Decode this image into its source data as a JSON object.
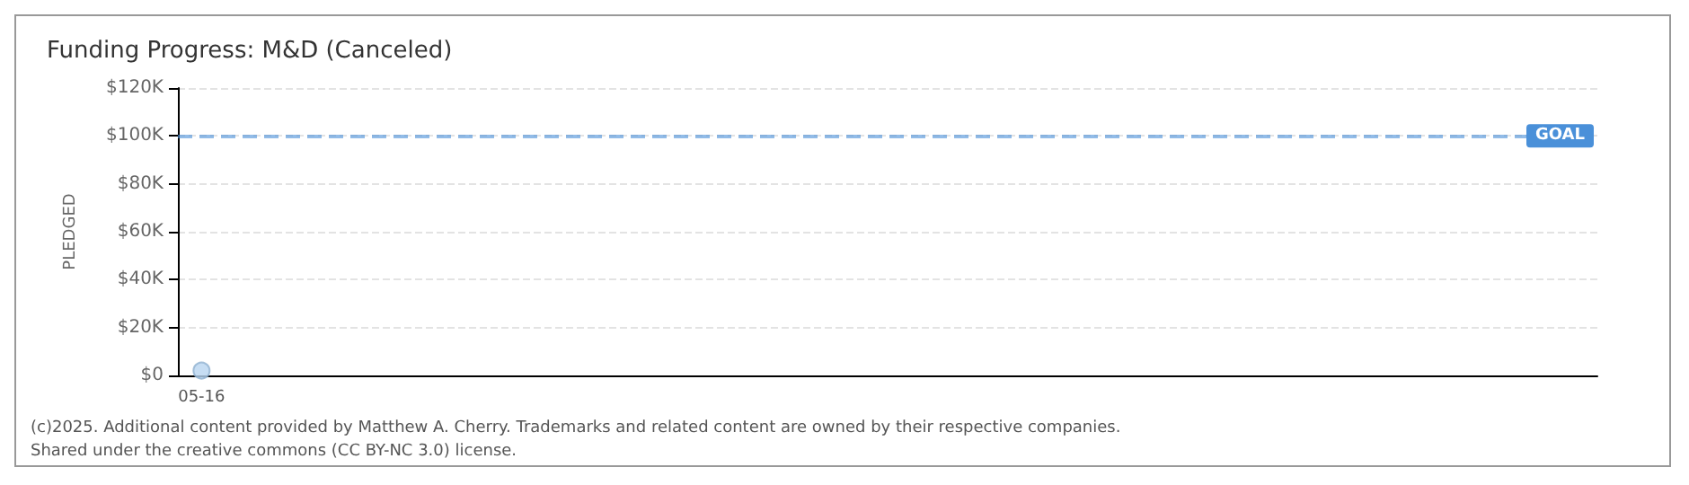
{
  "chart_data": {
    "type": "scatter",
    "title": "Funding Progress: M&D (Canceled)",
    "ylabel": "PLEDGED",
    "categories": [
      "05-16",
      null,
      null,
      null,
      null,
      null,
      null,
      null,
      null,
      null,
      null,
      null,
      null,
      null,
      null,
      null,
      null,
      null,
      null,
      null,
      null,
      null,
      null,
      null,
      null,
      null,
      null,
      null,
      null,
      null
    ],
    "series": [
      {
        "color": "#b8d4f0",
        "values": [
          2000,
          null,
          null,
          null,
          null,
          null,
          null,
          null,
          null,
          null,
          null,
          null,
          null,
          null,
          null,
          null,
          null,
          null,
          null,
          null,
          null,
          null,
          null,
          null,
          null,
          null,
          null,
          null,
          null,
          null
        ]
      }
    ],
    "ylim": [
      0,
      120000
    ],
    "yticks": [
      {
        "value": 0,
        "label": "$0"
      },
      {
        "value": 20000,
        "label": "$20K"
      },
      {
        "value": 40000,
        "label": "$40K"
      },
      {
        "value": 60000,
        "label": "$60K"
      },
      {
        "value": 80000,
        "label": "$80K"
      },
      {
        "value": 100000,
        "label": "$100K"
      },
      {
        "value": 120000,
        "label": "$120K"
      }
    ],
    "ref_lines": [
      {
        "axis": "y",
        "value": 100000,
        "label": "GOAL",
        "color": "#4a90d9",
        "line_style": "dashed"
      }
    ],
    "grid": "y",
    "marker": "circle",
    "annotations": [
      "(c)2025. Additional content provided by Matthew A. Cherry. Trademarks and related content are owned by their respective companies.",
      "Shared under the creative commons (CC BY-NC 3.0) license."
    ]
  }
}
